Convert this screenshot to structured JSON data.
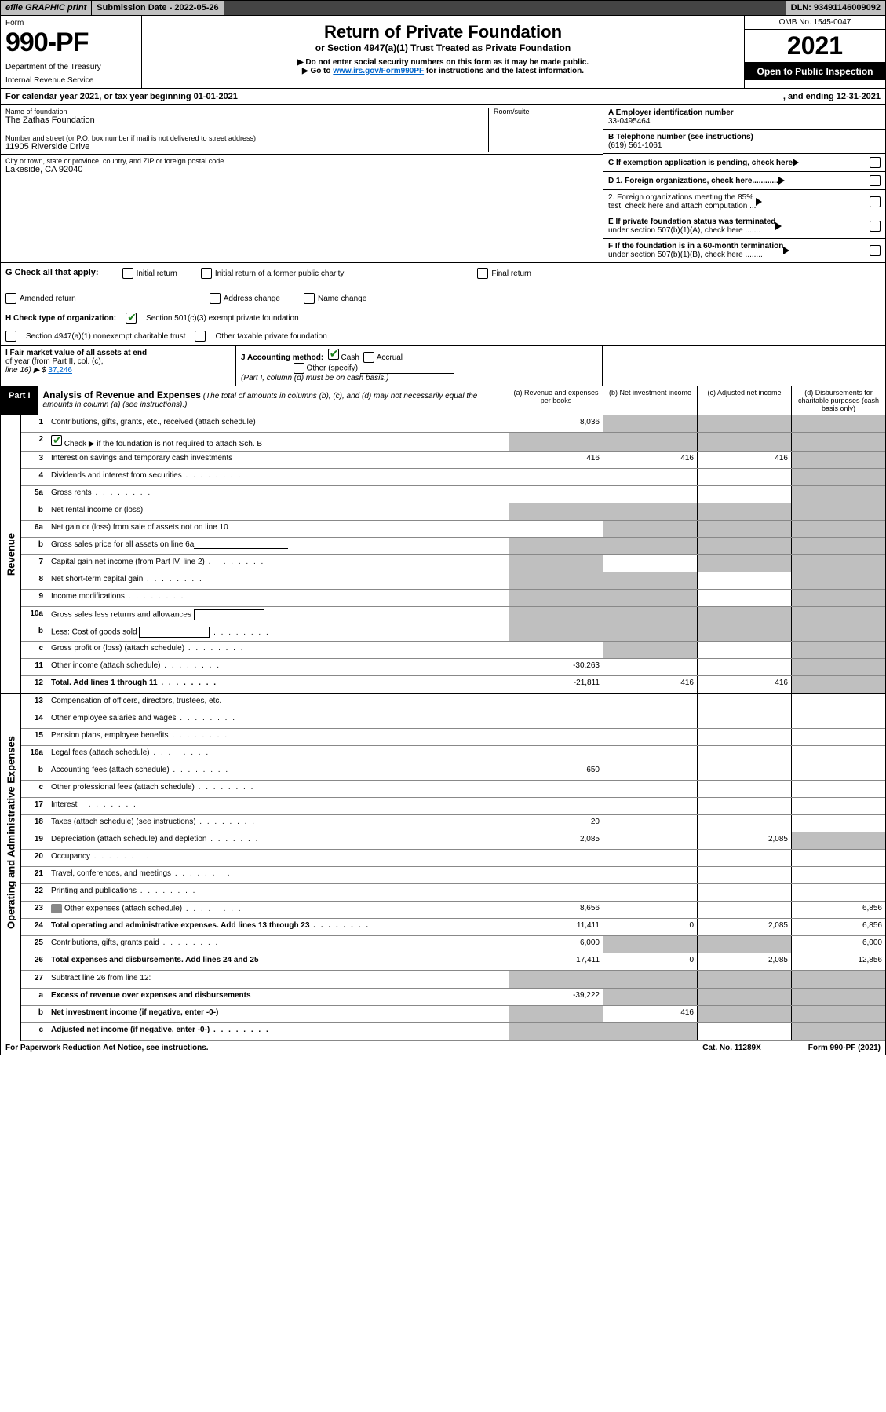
{
  "topbar": {
    "efile": "efile GRAPHIC print",
    "subdate_label": "Submission Date - ",
    "subdate": "2022-05-26",
    "dln_label": "DLN: ",
    "dln": "93491146009092"
  },
  "header": {
    "form_word": "Form",
    "form_no": "990-PF",
    "dept1": "Department of the Treasury",
    "dept2": "Internal Revenue Service",
    "title": "Return of Private Foundation",
    "subtitle": "or Section 4947(a)(1) Trust Treated as Private Foundation",
    "warn": "▶ Do not enter social security numbers on this form as it may be made public.",
    "link_pre": "▶ Go to ",
    "link_url": "www.irs.gov/Form990PF",
    "link_post": " for instructions and the latest information.",
    "omb": "OMB No. 1545-0047",
    "year": "2021",
    "open": "Open to Public Inspection"
  },
  "calyear": {
    "left": "For calendar year 2021, or tax year beginning 01-01-2021",
    "right": ", and ending 12-31-2021"
  },
  "info": {
    "name_lbl": "Name of foundation",
    "name": "The Zathas Foundation",
    "addr_lbl": "Number and street (or P.O. box number if mail is not delivered to street address)",
    "addr": "11905 Riverside Drive",
    "room_lbl": "Room/suite",
    "city_lbl": "City or town, state or province, country, and ZIP or foreign postal code",
    "city": "Lakeside, CA  92040",
    "a_lbl": "A Employer identification number",
    "a_val": "33-0495464",
    "b_lbl": "B Telephone number (see instructions)",
    "b_val": "(619) 561-1061",
    "c_lbl": "C If exemption application is pending, check here",
    "d1": "D 1. Foreign organizations, check here............",
    "d2a": "2. Foreign organizations meeting the 85%",
    "d2b": "test, check here and attach computation ...",
    "e1": "E If private foundation status was terminated",
    "e2": "under section 507(b)(1)(A), check here .......",
    "f1": "F If the foundation is in a 60-month termination",
    "f2": "under section 507(b)(1)(B), check here ........"
  },
  "g": {
    "lead": "G Check all that apply:",
    "o1": "Initial return",
    "o2": "Initial return of a former public charity",
    "o3": "Final return",
    "o4": "Amended return",
    "o5": "Address change",
    "o6": "Name change"
  },
  "h": {
    "lead": "H Check type of organization:",
    "o1": "Section 501(c)(3) exempt private foundation",
    "o2": "Section 4947(a)(1) nonexempt charitable trust",
    "o3": "Other taxable private foundation"
  },
  "i": {
    "lbl1": "I Fair market value of all assets at end",
    "lbl2": "of year (from Part II, col. (c),",
    "lbl3": "line 16) ▶ $",
    "val": "37,246"
  },
  "j": {
    "lbl": "J Accounting method:",
    "cash": "Cash",
    "accrual": "Accrual",
    "other": "Other (specify)",
    "note": "(Part I, column (d) must be on cash basis.)"
  },
  "part1": {
    "tag": "Part I",
    "title": "Analysis of Revenue and Expenses",
    "note": " (The total of amounts in columns (b), (c), and (d) may not necessarily equal the amounts in column (a) (see instructions).)",
    "col_a": "(a) Revenue and expenses per books",
    "col_b": "(b) Net investment income",
    "col_c": "(c) Adjusted net income",
    "col_d": "(d) Disbursements for charitable purposes (cash basis only)"
  },
  "sections": {
    "revenue": "Revenue",
    "opex": "Operating and Administrative Expenses"
  },
  "rows": [
    {
      "n": "1",
      "lbl": "Contributions, gifts, grants, etc., received (attach schedule)",
      "a": "8,036",
      "b": "",
      "c": "",
      "d": "",
      "sh": [
        "b",
        "c",
        "d"
      ]
    },
    {
      "n": "2",
      "lbl": "Check ▶ ⬛ if the foundation is not required to attach Sch. B",
      "chk": true,
      "a": "",
      "b": "",
      "c": "",
      "d": "",
      "sh": [
        "a",
        "b",
        "c",
        "d"
      ]
    },
    {
      "n": "3",
      "lbl": "Interest on savings and temporary cash investments",
      "a": "416",
      "b": "416",
      "c": "416",
      "d": "",
      "sh": [
        "d"
      ]
    },
    {
      "n": "4",
      "lbl": "Dividends and interest from securities",
      "dots": true,
      "a": "",
      "b": "",
      "c": "",
      "d": "",
      "sh": [
        "d"
      ]
    },
    {
      "n": "5a",
      "lbl": "Gross rents",
      "dots": true,
      "a": "",
      "b": "",
      "c": "",
      "d": "",
      "sh": [
        "d"
      ]
    },
    {
      "n": "b",
      "lbl": "Net rental income or (loss)",
      "inline": true,
      "a": "",
      "b": "",
      "c": "",
      "d": "",
      "sh": [
        "a",
        "b",
        "c",
        "d"
      ]
    },
    {
      "n": "6a",
      "lbl": "Net gain or (loss) from sale of assets not on line 10",
      "a": "",
      "b": "",
      "c": "",
      "d": "",
      "sh": [
        "b",
        "c",
        "d"
      ]
    },
    {
      "n": "b",
      "lbl": "Gross sales price for all assets on line 6a",
      "inline": true,
      "a": "",
      "b": "",
      "c": "",
      "d": "",
      "sh": [
        "a",
        "b",
        "c",
        "d"
      ]
    },
    {
      "n": "7",
      "lbl": "Capital gain net income (from Part IV, line 2)",
      "dots": true,
      "a": "",
      "b": "",
      "c": "",
      "d": "",
      "sh": [
        "a",
        "c",
        "d"
      ]
    },
    {
      "n": "8",
      "lbl": "Net short-term capital gain",
      "dots": true,
      "a": "",
      "b": "",
      "c": "",
      "d": "",
      "sh": [
        "a",
        "b",
        "d"
      ]
    },
    {
      "n": "9",
      "lbl": "Income modifications",
      "dots": true,
      "a": "",
      "b": "",
      "c": "",
      "d": "",
      "sh": [
        "a",
        "b",
        "d"
      ]
    },
    {
      "n": "10a",
      "lbl": "Gross sales less returns and allowances",
      "inlinebox": true,
      "a": "",
      "b": "",
      "c": "",
      "d": "",
      "sh": [
        "a",
        "b",
        "c",
        "d"
      ]
    },
    {
      "n": "b",
      "lbl": "Less: Cost of goods sold",
      "dots": true,
      "inlinebox": true,
      "a": "",
      "b": "",
      "c": "",
      "d": "",
      "sh": [
        "a",
        "b",
        "c",
        "d"
      ]
    },
    {
      "n": "c",
      "lbl": "Gross profit or (loss) (attach schedule)",
      "dots": true,
      "a": "",
      "b": "",
      "c": "",
      "d": "",
      "sh": [
        "b",
        "d"
      ]
    },
    {
      "n": "11",
      "lbl": "Other income (attach schedule)",
      "dots": true,
      "a": "-30,263",
      "b": "",
      "c": "",
      "d": "",
      "sh": [
        "d"
      ]
    },
    {
      "n": "12",
      "lbl": "Total. Add lines 1 through 11",
      "bold": true,
      "dots": true,
      "a": "-21,811",
      "b": "416",
      "c": "416",
      "d": "",
      "sh": [
        "d"
      ]
    }
  ],
  "rows2": [
    {
      "n": "13",
      "lbl": "Compensation of officers, directors, trustees, etc.",
      "a": "",
      "b": "",
      "c": "",
      "d": ""
    },
    {
      "n": "14",
      "lbl": "Other employee salaries and wages",
      "dots": true,
      "a": "",
      "b": "",
      "c": "",
      "d": ""
    },
    {
      "n": "15",
      "lbl": "Pension plans, employee benefits",
      "dots": true,
      "a": "",
      "b": "",
      "c": "",
      "d": ""
    },
    {
      "n": "16a",
      "lbl": "Legal fees (attach schedule)",
      "dots": true,
      "a": "",
      "b": "",
      "c": "",
      "d": ""
    },
    {
      "n": "b",
      "lbl": "Accounting fees (attach schedule)",
      "dots": true,
      "a": "650",
      "b": "",
      "c": "",
      "d": ""
    },
    {
      "n": "c",
      "lbl": "Other professional fees (attach schedule)",
      "dots": true,
      "a": "",
      "b": "",
      "c": "",
      "d": ""
    },
    {
      "n": "17",
      "lbl": "Interest",
      "dots": true,
      "a": "",
      "b": "",
      "c": "",
      "d": ""
    },
    {
      "n": "18",
      "lbl": "Taxes (attach schedule) (see instructions)",
      "dots": true,
      "a": "20",
      "b": "",
      "c": "",
      "d": ""
    },
    {
      "n": "19",
      "lbl": "Depreciation (attach schedule) and depletion",
      "dots": true,
      "a": "2,085",
      "b": "",
      "c": "2,085",
      "d": "",
      "sh": [
        "d"
      ]
    },
    {
      "n": "20",
      "lbl": "Occupancy",
      "dots": true,
      "a": "",
      "b": "",
      "c": "",
      "d": ""
    },
    {
      "n": "21",
      "lbl": "Travel, conferences, and meetings",
      "dots": true,
      "a": "",
      "b": "",
      "c": "",
      "d": ""
    },
    {
      "n": "22",
      "lbl": "Printing and publications",
      "dots": true,
      "a": "",
      "b": "",
      "c": "",
      "d": ""
    },
    {
      "n": "23",
      "lbl": "Other expenses (attach schedule)",
      "dots": true,
      "icon": true,
      "a": "8,656",
      "b": "",
      "c": "",
      "d": "6,856"
    },
    {
      "n": "24",
      "lbl": "Total operating and administrative expenses. Add lines 13 through 23",
      "bold": true,
      "dots": true,
      "a": "11,411",
      "b": "0",
      "c": "2,085",
      "d": "6,856"
    },
    {
      "n": "25",
      "lbl": "Contributions, gifts, grants paid",
      "dots": true,
      "a": "6,000",
      "b": "",
      "c": "",
      "d": "6,000",
      "sh": [
        "b",
        "c"
      ]
    },
    {
      "n": "26",
      "lbl": "Total expenses and disbursements. Add lines 24 and 25",
      "bold": true,
      "a": "17,411",
      "b": "0",
      "c": "2,085",
      "d": "12,856"
    }
  ],
  "rows3": [
    {
      "n": "27",
      "lbl": "Subtract line 26 from line 12:",
      "a": "",
      "b": "",
      "c": "",
      "d": "",
      "sh": [
        "a",
        "b",
        "c",
        "d"
      ]
    },
    {
      "n": "a",
      "lbl": "Excess of revenue over expenses and disbursements",
      "bold": true,
      "a": "-39,222",
      "b": "",
      "c": "",
      "d": "",
      "sh": [
        "b",
        "c",
        "d"
      ]
    },
    {
      "n": "b",
      "lbl": "Net investment income (if negative, enter -0-)",
      "bold": true,
      "a": "",
      "b": "416",
      "c": "",
      "d": "",
      "sh": [
        "a",
        "c",
        "d"
      ]
    },
    {
      "n": "c",
      "lbl": "Adjusted net income (if negative, enter -0-)",
      "bold": true,
      "dots": true,
      "a": "",
      "b": "",
      "c": "",
      "d": "",
      "sh": [
        "a",
        "b",
        "d"
      ]
    }
  ],
  "footer": {
    "left": "For Paperwork Reduction Act Notice, see instructions.",
    "mid": "Cat. No. 11289X",
    "right": "Form 990-PF (2021)"
  },
  "colors": {
    "shade": "#bfbfbf",
    "link": "#0066cc",
    "check": "#1a7f1a"
  }
}
